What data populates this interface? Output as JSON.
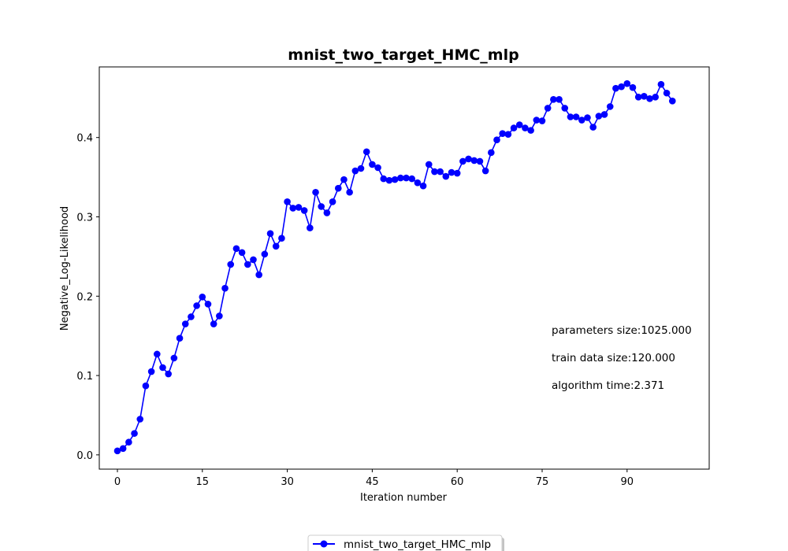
{
  "chart_data": {
    "type": "line",
    "title": "mnist_two_target_HMC_mlp",
    "xlabel": "Iteration number",
    "ylabel": "Negative_Log-Likelihood",
    "xlim": [
      -3.2,
      104.5
    ],
    "ylim": [
      -0.018,
      0.489
    ],
    "xticks": [
      0,
      15,
      30,
      45,
      60,
      75,
      90
    ],
    "yticks": [
      0.0,
      0.1,
      0.2,
      0.3,
      0.4
    ],
    "ytick_labels": [
      "0.0",
      "0.1",
      "0.2",
      "0.3",
      "0.4"
    ],
    "grid": false,
    "legend_position": "bottom-center",
    "series": [
      {
        "name": "mnist_two_target_HMC_mlp",
        "color": "#0000ff",
        "marker": "circle",
        "x": [
          0,
          1,
          2,
          3,
          4,
          5,
          6,
          7,
          8,
          9,
          10,
          11,
          12,
          13,
          14,
          15,
          16,
          17,
          18,
          19,
          20,
          21,
          22,
          23,
          24,
          25,
          26,
          27,
          28,
          29,
          30,
          31,
          32,
          33,
          34,
          35,
          36,
          37,
          38,
          39,
          40,
          41,
          42,
          43,
          44,
          45,
          46,
          47,
          48,
          49,
          50,
          51,
          52,
          53,
          54,
          55,
          56,
          57,
          58,
          59,
          60,
          61,
          62,
          63,
          64,
          65,
          66,
          67,
          68,
          69,
          70,
          71,
          72,
          73,
          74,
          75,
          76,
          77,
          78,
          79,
          80,
          81,
          82,
          83,
          84,
          85,
          86,
          87,
          88,
          89,
          90,
          91,
          92,
          93,
          94,
          95,
          96,
          97,
          98
        ],
        "values": [
          0.005,
          0.008,
          0.016,
          0.027,
          0.045,
          0.087,
          0.105,
          0.127,
          0.11,
          0.102,
          0.122,
          0.147,
          0.165,
          0.174,
          0.188,
          0.199,
          0.19,
          0.165,
          0.175,
          0.21,
          0.24,
          0.26,
          0.255,
          0.24,
          0.246,
          0.227,
          0.253,
          0.279,
          0.263,
          0.273,
          0.319,
          0.311,
          0.312,
          0.308,
          0.286,
          0.331,
          0.313,
          0.305,
          0.319,
          0.336,
          0.347,
          0.331,
          0.358,
          0.361,
          0.382,
          0.366,
          0.362,
          0.348,
          0.346,
          0.347,
          0.349,
          0.349,
          0.348,
          0.343,
          0.339,
          0.366,
          0.357,
          0.357,
          0.351,
          0.356,
          0.355,
          0.37,
          0.373,
          0.371,
          0.37,
          0.358,
          0.381,
          0.397,
          0.405,
          0.404,
          0.412,
          0.416,
          0.412,
          0.409,
          0.422,
          0.421,
          0.437,
          0.448,
          0.448,
          0.437,
          0.426,
          0.426,
          0.422,
          0.425,
          0.413,
          0.427,
          0.429,
          0.439,
          0.462,
          0.464,
          0.468,
          0.463,
          0.451,
          0.452,
          0.449,
          0.451,
          0.467,
          0.456,
          0.446
        ]
      }
    ],
    "annotations": [
      "parameters size:1025.000",
      "train data size:120.000",
      "algorithm time:2.371"
    ]
  }
}
